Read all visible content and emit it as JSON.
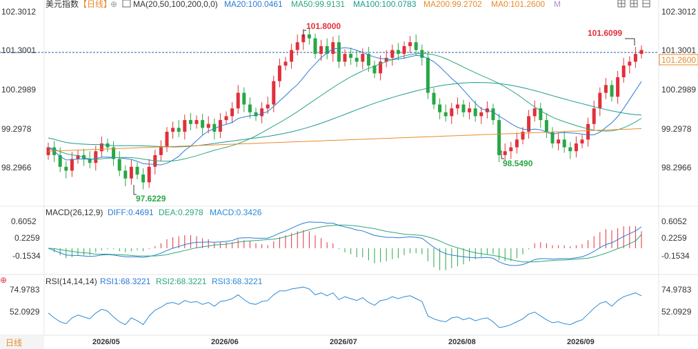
{
  "header": {
    "name": "美元指数",
    "period_tag": "【日线】",
    "ma_label": "MA(20,50,100,200,0,0)",
    "ma20": "MA20:100.0461",
    "ma50": "MA50:99.9131",
    "ma100": "MA100:100.0783",
    "ma200": "MA200:99.2702",
    "ma0": "MA0:101.2600",
    "m": "M"
  },
  "macd_header": {
    "label": "MACD(26,12,9)",
    "diff": "DIFF:0.4691",
    "dea": "DEA:0.2978",
    "macd": "MACD:0.3426"
  },
  "rsi_header": {
    "label": "RSI(14,14,14)",
    "rsi1": "RSI1:68.3221",
    "rsi2": "RSI2:68.3221",
    "rsi3": "RSI3:68.3221"
  },
  "bottom_tab": "日线",
  "colors": {
    "up": "#e0303a",
    "down": "#28a745",
    "ma20": "#2a7ad6",
    "ma50": "#2aa67a",
    "ma100": "#1a9a8c",
    "ma200": "#e8892a",
    "ma0": "#e8892a",
    "rsi": "#2a8ad6"
  },
  "chart_data": {
    "type": "candlestick",
    "price_ticks": [
      "102.3012",
      "101.3001",
      "100.2989",
      "99.2978",
      "98.2966"
    ],
    "last_price": "101.2600",
    "high_label": "101.8000",
    "low_label": "97.6229",
    "local_high_label": "101.6099",
    "local_low_label": "98.5490",
    "macd_ticks": [
      "0.6052",
      "0.2259",
      "-0.1534"
    ],
    "rsi_ticks": [
      "74.9783",
      "52.0929"
    ],
    "x_labels": [
      "2026/05",
      "2026/06",
      "2026/07",
      "2026/08",
      "2026/09"
    ],
    "x_label_index": [
      10,
      30,
      50,
      70,
      90
    ],
    "closes": [
      98.8,
      98.6,
      98.3,
      98.2,
      98.5,
      98.6,
      98.5,
      98.4,
      98.7,
      98.9,
      98.8,
      98.5,
      98.2,
      98.0,
      98.3,
      98.1,
      97.9,
      98.3,
      98.6,
      98.8,
      99.2,
      99.3,
      99.2,
      99.5,
      99.4,
      99.5,
      99.3,
      99.4,
      99.2,
      99.5,
      99.6,
      99.8,
      100.2,
      99.9,
      99.7,
      99.6,
      99.8,
      99.9,
      100.5,
      100.9,
      101.0,
      101.3,
      101.5,
      101.7,
      101.6,
      101.2,
      101.4,
      101.2,
      101.5,
      101.0,
      101.2,
      101.1,
      101.0,
      101.2,
      100.9,
      100.7,
      101.0,
      101.1,
      101.3,
      101.2,
      101.4,
      101.5,
      101.3,
      101.1,
      100.2,
      99.9,
      99.7,
      99.6,
      99.8,
      99.9,
      99.7,
      99.8,
      99.6,
      99.7,
      99.8,
      99.5,
      98.6,
      98.7,
      98.8,
      99.0,
      99.2,
      99.6,
      99.8,
      99.5,
      99.2,
      98.9,
      99.0,
      98.8,
      98.7,
      98.9,
      99.0,
      99.4,
      99.8,
      100.2,
      100.4,
      100.1,
      100.6,
      100.9,
      101.0,
      101.2,
      101.3
    ],
    "macd_diff": [
      0.0,
      -0.05,
      -0.1,
      -0.15,
      -0.16,
      -0.16,
      -0.17,
      -0.18,
      -0.17,
      -0.15,
      -0.14,
      -0.15,
      -0.17,
      -0.19,
      -0.19,
      -0.19,
      -0.2,
      -0.18,
      -0.15,
      -0.11,
      -0.05,
      0.0,
      0.04,
      0.08,
      0.11,
      0.13,
      0.13,
      0.14,
      0.13,
      0.14,
      0.15,
      0.17,
      0.22,
      0.23,
      0.23,
      0.22,
      0.22,
      0.22,
      0.27,
      0.33,
      0.38,
      0.44,
      0.5,
      0.55,
      0.58,
      0.57,
      0.57,
      0.55,
      0.55,
      0.5,
      0.47,
      0.44,
      0.4,
      0.38,
      0.33,
      0.28,
      0.26,
      0.24,
      0.24,
      0.23,
      0.24,
      0.25,
      0.24,
      0.22,
      0.12,
      0.02,
      -0.06,
      -0.12,
      -0.15,
      -0.17,
      -0.19,
      -0.2,
      -0.21,
      -0.21,
      -0.2,
      -0.22,
      -0.3,
      -0.35,
      -0.38,
      -0.38,
      -0.36,
      -0.31,
      -0.25,
      -0.23,
      -0.23,
      -0.24,
      -0.23,
      -0.23,
      -0.23,
      -0.21,
      -0.19,
      -0.14,
      -0.07,
      0.01,
      0.08,
      0.12,
      0.19,
      0.26,
      0.32,
      0.38,
      0.47
    ],
    "macd_dea": [
      0.0,
      -0.01,
      -0.03,
      -0.05,
      -0.07,
      -0.09,
      -0.1,
      -0.11,
      -0.13,
      -0.13,
      -0.13,
      -0.14,
      -0.14,
      -0.15,
      -0.16,
      -0.17,
      -0.17,
      -0.17,
      -0.17,
      -0.16,
      -0.14,
      -0.11,
      -0.08,
      -0.05,
      -0.02,
      0.01,
      0.03,
      0.05,
      0.07,
      0.08,
      0.09,
      0.11,
      0.13,
      0.15,
      0.16,
      0.17,
      0.18,
      0.19,
      0.2,
      0.22,
      0.25,
      0.29,
      0.33,
      0.37,
      0.41,
      0.44,
      0.47,
      0.49,
      0.5,
      0.51,
      0.51,
      0.5,
      0.49,
      0.47,
      0.45,
      0.43,
      0.4,
      0.37,
      0.35,
      0.33,
      0.31,
      0.3,
      0.29,
      0.28,
      0.25,
      0.21,
      0.16,
      0.1,
      0.05,
      0.01,
      -0.03,
      -0.07,
      -0.1,
      -0.12,
      -0.14,
      -0.16,
      -0.18,
      -0.22,
      -0.25,
      -0.28,
      -0.3,
      -0.3,
      -0.3,
      -0.29,
      -0.28,
      -0.27,
      -0.26,
      -0.26,
      -0.25,
      -0.24,
      -0.23,
      -0.22,
      -0.19,
      -0.15,
      -0.11,
      -0.06,
      -0.01,
      0.04,
      0.1,
      0.16,
      0.3
    ],
    "rsi": [
      50,
      45,
      41,
      39,
      45,
      48,
      46,
      44,
      50,
      54,
      52,
      46,
      41,
      38,
      45,
      42,
      38,
      47,
      53,
      56,
      60,
      61,
      59,
      63,
      61,
      62,
      59,
      61,
      57,
      62,
      63,
      65,
      69,
      64,
      60,
      59,
      62,
      63,
      69,
      73,
      73,
      75,
      76,
      77,
      75,
      69,
      71,
      68,
      71,
      64,
      67,
      65,
      63,
      66,
      61,
      58,
      63,
      64,
      67,
      65,
      67,
      68,
      65,
      62,
      47,
      44,
      42,
      41,
      45,
      46,
      43,
      45,
      42,
      44,
      45,
      41,
      35,
      36,
      38,
      41,
      44,
      49,
      51,
      47,
      43,
      40,
      41,
      39,
      38,
      41,
      43,
      49,
      55,
      60,
      62,
      57,
      63,
      67,
      69,
      71,
      68
    ]
  }
}
